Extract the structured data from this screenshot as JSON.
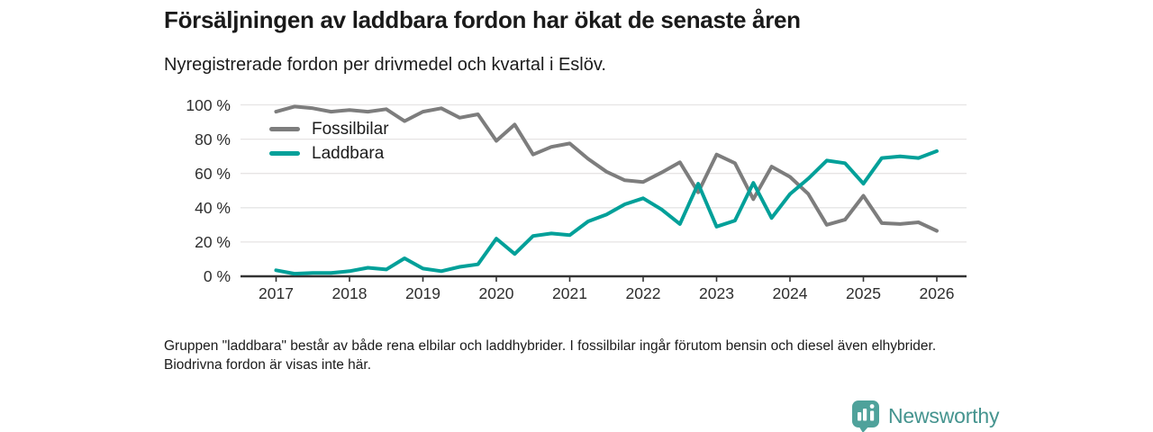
{
  "header": {
    "title": "Försäljningen av laddbara fordon har ökat de senaste åren",
    "subtitle": "Nyregistrerade fordon per drivmedel och kvartal i Eslöv."
  },
  "chart_data": {
    "type": "line",
    "unit": "percent",
    "x_unit": "quarter",
    "categories": [
      "2017-Q1",
      "2017-Q2",
      "2017-Q3",
      "2017-Q4",
      "2018-Q1",
      "2018-Q2",
      "2018-Q3",
      "2018-Q4",
      "2019-Q1",
      "2019-Q2",
      "2019-Q3",
      "2019-Q4",
      "2020-Q1",
      "2020-Q2",
      "2020-Q3",
      "2020-Q4",
      "2021-Q1",
      "2021-Q2",
      "2021-Q3",
      "2021-Q4",
      "2022-Q1",
      "2022-Q2",
      "2022-Q3",
      "2022-Q4",
      "2023-Q1",
      "2023-Q2",
      "2023-Q3",
      "2023-Q4",
      "2024-Q1",
      "2024-Q2",
      "2024-Q3",
      "2024-Q4",
      "2025-Q1",
      "2025-Q2",
      "2025-Q3",
      "2025-Q4",
      "2026-Q1"
    ],
    "series": [
      {
        "name": "Fossilbilar",
        "color": "#7d7d7d",
        "values": [
          96,
          99,
          98,
          96,
          97,
          96,
          97.5,
          90.5,
          96,
          98,
          92.5,
          94.5,
          79,
          88.5,
          71,
          75.5,
          77.5,
          68.5,
          61,
          56,
          55,
          60.5,
          66.5,
          49,
          71,
          66,
          45,
          64,
          58,
          48,
          30,
          33,
          47,
          31,
          30.5,
          31.5,
          26.5
        ]
      },
      {
        "name": "Laddbara",
        "color": "#00a099",
        "values": [
          3.5,
          1.5,
          2,
          2,
          3,
          5,
          4,
          10.5,
          4.5,
          3,
          5.5,
          7,
          22,
          13,
          23.5,
          25,
          24,
          32,
          36,
          42,
          45.5,
          39,
          30.5,
          54,
          29,
          32.5,
          54.5,
          34,
          48,
          57,
          67.5,
          66,
          54,
          69,
          70,
          69,
          73
        ]
      }
    ],
    "yticks": {
      "values": [
        0,
        20,
        40,
        60,
        80,
        100
      ],
      "labels": [
        "0 %",
        "20 %",
        "40 %",
        "60 %",
        "80 %",
        "100 %"
      ]
    },
    "xticks": {
      "labels": [
        "2017",
        "2018",
        "2019",
        "2020",
        "2021",
        "2022",
        "2023",
        "2024",
        "2025",
        "2026"
      ]
    },
    "ylim": [
      0,
      105
    ],
    "grid": true,
    "legend_position": "inside-top-left",
    "axis_color": "#333333",
    "grid_color": "#e6e4e4"
  },
  "footnote": {
    "text": "Gruppen \"laddbara\" består av både rena elbilar och laddhybrider. I fossilbilar ingår förutom bensin och diesel även elhybrider. Biodrivna fordon är visas inte här."
  },
  "logo": {
    "text": "Newsworthy",
    "text_color": "#45948f",
    "mark_color": "#4fa29b",
    "mark_icon": "bar-chart-speech-bubble"
  }
}
